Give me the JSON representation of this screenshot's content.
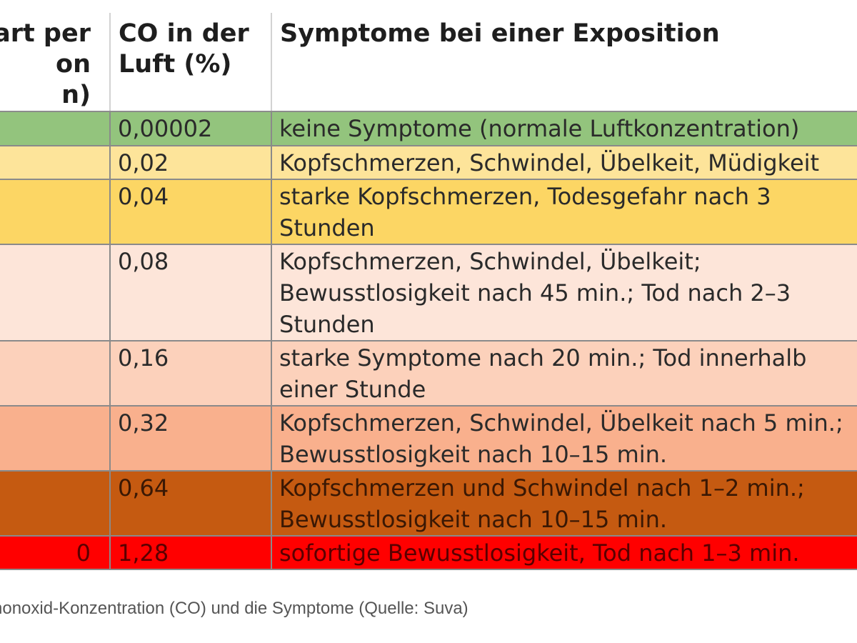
{
  "table": {
    "headers": {
      "ppm": "Wert per Million (ppm)",
      "co_percent": "CO in der Luft (%)",
      "symptoms": "Symptome bei einer Exposition"
    },
    "header_lines": {
      "ppm": [
        "art per",
        "on",
        "n)"
      ],
      "co_percent": [
        "CO in der",
        "Luft (%)"
      ],
      "symptoms": [
        "Symptome bei einer Exposition"
      ]
    },
    "rows": [
      {
        "ppm": "",
        "co_percent": "0,00002",
        "symptom_lines": [
          "keine Symptome (normale Luftkonzentration)"
        ],
        "color": "#93c47d",
        "text_color": "#2a2a2a"
      },
      {
        "ppm": "",
        "co_percent": "0,02",
        "symptom_lines": [
          "Kopfschmerzen, Schwindel, Übelkeit, Müdigkeit"
        ],
        "color": "#fde49a",
        "text_color": "#2a2a2a"
      },
      {
        "ppm": "",
        "co_percent": "0,04",
        "symptom_lines": [
          "starke Kopfschmerzen, Todesgefahr nach 3",
          "Stunden"
        ],
        "color": "#fcd664",
        "text_color": "#2a2a2a"
      },
      {
        "ppm": "",
        "co_percent": "0,08",
        "symptom_lines": [
          "Kopfschmerzen, Schwindel, Übelkeit;",
          "Bewusstlosigkeit nach 45 min.; Tod nach 2–3",
          "Stunden"
        ],
        "color": "#fde5d9",
        "text_color": "#2a2a2a"
      },
      {
        "ppm": "",
        "co_percent": "0,16",
        "symptom_lines": [
          "starke Symptome nach 20 min.; Tod innerhalb",
          "einer Stunde"
        ],
        "color": "#fcd1bb",
        "text_color": "#2a2a2a"
      },
      {
        "ppm": "",
        "co_percent": "0,32",
        "symptom_lines": [
          "Kopfschmerzen, Schwindel, Übelkeit nach 5 min.;",
          "Bewusstlosigkeit nach 10–15 min."
        ],
        "color": "#f9b08d",
        "text_color": "#2a2a2a"
      },
      {
        "ppm": "",
        "co_percent": "0,64",
        "symptom_lines": [
          "Kopfschmerzen und Schwindel nach 1–2 min.;",
          "Bewusstlosigkeit nach 10–15 min."
        ],
        "color": "#c55a11",
        "text_color": "#3a1804"
      },
      {
        "ppm": "0",
        "co_percent": "1,28",
        "symptom_lines": [
          "sofortige Bewusstlosigkeit, Tod nach 1–3 min."
        ],
        "color": "#ff0000",
        "text_color": "#5a0000"
      }
    ]
  },
  "caption": "nonoxid-Konzentration (CO) und die Symptome (Quelle: Suva)"
}
